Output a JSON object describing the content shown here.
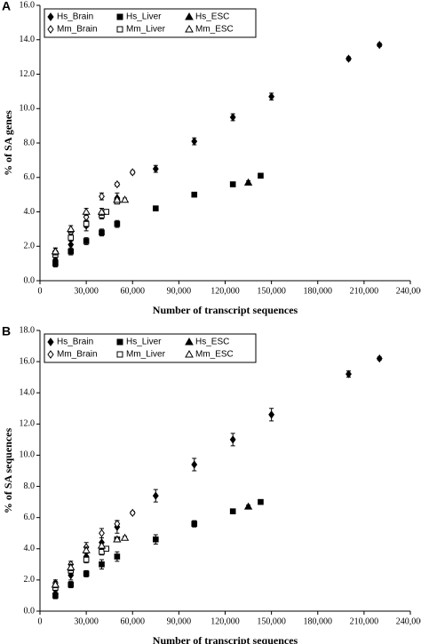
{
  "chart_data": [
    {
      "type": "scatter",
      "label": "A",
      "ylabel": "% of SA genes",
      "xlabel": "Number of transcript sequences",
      "xlim": [
        0,
        240000
      ],
      "xticks": [
        0,
        {
          "value": 30000,
          "label": "30,000"
        },
        {
          "value": 60000,
          "label": "60,000"
        },
        {
          "value": 90000,
          "label": "90,000"
        },
        {
          "value": 120000,
          "label": "120,000"
        },
        {
          "value": 150000,
          "label": "150,000"
        },
        {
          "value": 180000,
          "label": "180,000"
        },
        {
          "value": 210000,
          "label": "210,000"
        },
        {
          "value": 240000,
          "label": "240,000"
        }
      ],
      "ylim": [
        0,
        16
      ],
      "yticks": [
        {
          "value": 0,
          "label": "0.0"
        },
        {
          "value": 2,
          "label": "2.0"
        },
        {
          "value": 4,
          "label": "4.0"
        },
        {
          "value": 6,
          "label": "6.0"
        },
        {
          "value": 8,
          "label": "8.0"
        },
        {
          "value": 10,
          "label": "10.0"
        },
        {
          "value": 12,
          "label": "12.0"
        },
        {
          "value": 14,
          "label": "14.0"
        },
        {
          "value": 16,
          "label": "16.0"
        }
      ],
      "series": [
        {
          "name": "Hs_Brain",
          "color": "#000000",
          "marker": "diamond",
          "filled": true,
          "x": [
            10000,
            20000,
            30000,
            40000,
            50000,
            75000,
            100000,
            125000,
            150000,
            200000,
            220000
          ],
          "values": [
            1.2,
            2.1,
            3.2,
            3.9,
            4.8,
            6.5,
            8.1,
            9.5,
            10.7,
            12.9,
            13.7
          ],
          "errors": [
            0.2,
            0.3,
            0.3,
            0.3,
            0.3,
            0.2,
            0.2,
            0.2,
            0.2,
            0.1,
            0.1
          ]
        },
        {
          "name": "Hs_Liver",
          "color": "#000000",
          "marker": "square",
          "filled": true,
          "x": [
            10000,
            20000,
            30000,
            40000,
            50000,
            75000,
            100000,
            125000,
            143000
          ],
          "values": [
            1.0,
            1.7,
            2.3,
            2.8,
            3.3,
            4.2,
            5.0,
            5.6,
            6.1
          ],
          "errors": [
            0.2,
            0.2,
            0.2,
            0.2,
            0.2,
            0.1,
            0.1,
            0.1,
            0.1
          ]
        },
        {
          "name": "Hs_ESC",
          "color": "#000000",
          "marker": "triangle",
          "filled": true,
          "x": [
            135000
          ],
          "values": [
            5.7
          ],
          "errors": [
            0.1
          ]
        },
        {
          "name": "Mm_Brain",
          "color": "#000000",
          "marker": "diamond",
          "filled": false,
          "x": [
            10000,
            20000,
            30000,
            40000,
            50000,
            60000
          ],
          "values": [
            1.7,
            2.8,
            3.7,
            4.9,
            5.6,
            6.3
          ],
          "errors": [
            0.2,
            0.2,
            0.2,
            0.2,
            0.1,
            0.1
          ]
        },
        {
          "name": "Mm_Liver",
          "color": "#000000",
          "marker": "square",
          "filled": false,
          "x": [
            10000,
            20000,
            30000,
            40000,
            43000,
            50000
          ],
          "values": [
            1.5,
            2.5,
            3.3,
            3.8,
            4.0,
            4.6
          ],
          "errors": [
            0.2,
            0.2,
            0.2,
            0.2,
            0.1,
            0.1
          ]
        },
        {
          "name": "Mm_ESC",
          "color": "#000000",
          "marker": "triangle",
          "filled": false,
          "x": [
            10000,
            20000,
            30000,
            40000,
            50000,
            55000
          ],
          "values": [
            1.7,
            3.0,
            4.0,
            4.0,
            4.7,
            4.7
          ],
          "errors": [
            0.2,
            0.2,
            0.2,
            0.2,
            0.1,
            0.1
          ]
        }
      ]
    },
    {
      "type": "scatter",
      "label": "B",
      "ylabel": "% of SA sequences",
      "xlabel": "Number of transcript sequences",
      "xlim": [
        0,
        240000
      ],
      "xticks": [
        0,
        {
          "value": 30000,
          "label": "30,000"
        },
        {
          "value": 60000,
          "label": "60,000"
        },
        {
          "value": 90000,
          "label": "90,000"
        },
        {
          "value": 120000,
          "label": "120,000"
        },
        {
          "value": 150000,
          "label": "150,000"
        },
        {
          "value": 180000,
          "label": "180,000"
        },
        {
          "value": 210000,
          "label": "210,000"
        },
        {
          "value": 240000,
          "label": "240,000"
        }
      ],
      "ylim": [
        0,
        18
      ],
      "yticks": [
        {
          "value": 0,
          "label": "0.0"
        },
        {
          "value": 2,
          "label": "2.0"
        },
        {
          "value": 4,
          "label": "4.0"
        },
        {
          "value": 6,
          "label": "6.0"
        },
        {
          "value": 8,
          "label": "8.0"
        },
        {
          "value": 10,
          "label": "10.0"
        },
        {
          "value": 12,
          "label": "12.0"
        },
        {
          "value": 14,
          "label": "14.0"
        },
        {
          "value": 16,
          "label": "16.0"
        },
        {
          "value": 18,
          "label": "18.0"
        }
      ],
      "series": [
        {
          "name": "Hs_Brain",
          "color": "#000000",
          "marker": "diamond",
          "filled": true,
          "x": [
            10000,
            20000,
            30000,
            40000,
            50000,
            75000,
            100000,
            125000,
            150000,
            200000,
            220000
          ],
          "values": [
            1.1,
            2.3,
            3.5,
            4.4,
            5.4,
            7.4,
            9.4,
            11.0,
            12.6,
            15.2,
            16.2
          ],
          "errors": [
            0.2,
            0.3,
            0.3,
            0.3,
            0.4,
            0.4,
            0.4,
            0.4,
            0.4,
            0.2,
            0.1
          ]
        },
        {
          "name": "Hs_Liver",
          "color": "#000000",
          "marker": "square",
          "filled": true,
          "x": [
            10000,
            20000,
            30000,
            40000,
            50000,
            75000,
            100000,
            125000,
            143000
          ],
          "values": [
            1.0,
            1.7,
            2.4,
            3.0,
            3.5,
            4.6,
            5.6,
            6.4,
            7.0
          ],
          "errors": [
            0.2,
            0.2,
            0.2,
            0.3,
            0.3,
            0.3,
            0.2,
            0.1,
            0.1
          ]
        },
        {
          "name": "Hs_ESC",
          "color": "#000000",
          "marker": "triangle",
          "filled": true,
          "x": [
            135000
          ],
          "values": [
            6.7
          ],
          "errors": [
            0.1
          ]
        },
        {
          "name": "Mm_Brain",
          "color": "#000000",
          "marker": "diamond",
          "filled": false,
          "x": [
            10000,
            20000,
            30000,
            40000,
            50000,
            60000
          ],
          "values": [
            1.8,
            3.0,
            4.1,
            5.0,
            5.6,
            6.3
          ],
          "errors": [
            0.2,
            0.2,
            0.3,
            0.3,
            0.2,
            0.1
          ]
        },
        {
          "name": "Mm_Liver",
          "color": "#000000",
          "marker": "square",
          "filled": false,
          "x": [
            10000,
            20000,
            30000,
            40000,
            43000,
            50000
          ],
          "values": [
            1.5,
            2.6,
            3.3,
            3.8,
            4.0,
            4.6
          ],
          "errors": [
            0.2,
            0.2,
            0.2,
            0.2,
            0.1,
            0.1
          ]
        },
        {
          "name": "Mm_ESC",
          "color": "#000000",
          "marker": "triangle",
          "filled": false,
          "x": [
            10000,
            20000,
            30000,
            40000,
            50000,
            55000
          ],
          "values": [
            1.7,
            2.8,
            3.9,
            4.2,
            4.6,
            4.7
          ],
          "errors": [
            0.2,
            0.2,
            0.2,
            0.2,
            0.1,
            0.1
          ]
        }
      ]
    }
  ]
}
